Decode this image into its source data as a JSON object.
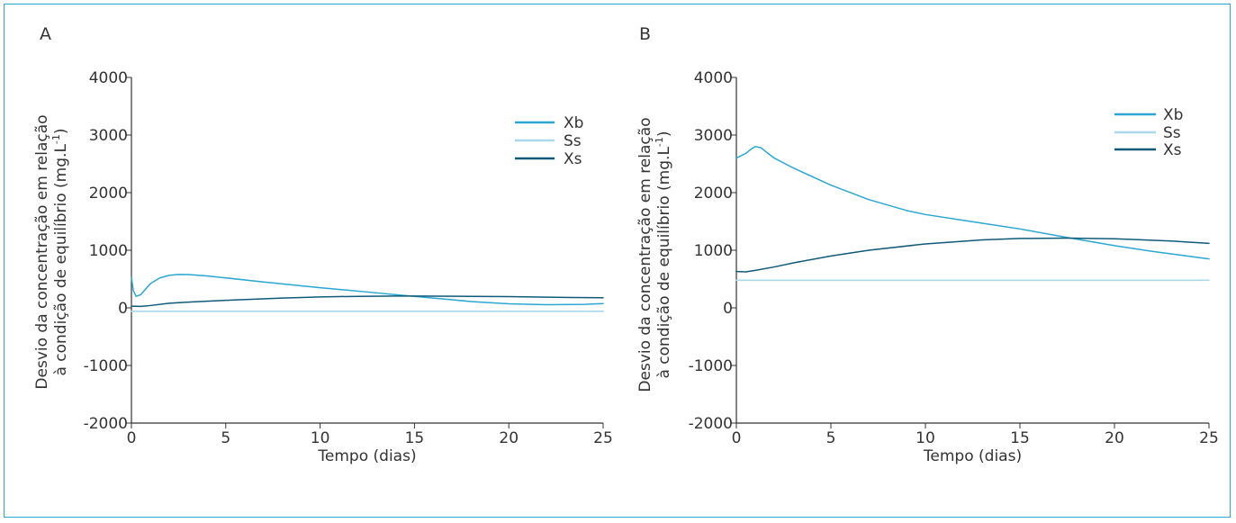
{
  "colors": {
    "Xb": "#2aa7d2",
    "Ss": "#a8d8ea",
    "Xs": "#0f5a78",
    "frame": "#2aa7d2",
    "axis": "#333333"
  },
  "chart_data": [
    {
      "type": "line",
      "panel_label": "A",
      "xlabel": "Tempo (dias)",
      "ylabel_line1": "Desvio da concentração em relação",
      "ylabel_line2": "à condição de equilíbrio (mg.L",
      "ylabel_sup": "-1",
      "ylabel_end": ")",
      "xlim": [
        0,
        25
      ],
      "ylim": [
        -2000,
        4000
      ],
      "xticks": [
        0,
        5,
        10,
        15,
        20,
        25
      ],
      "xtick_labels": [
        "0",
        "5",
        "10",
        "15",
        "20",
        "25"
      ],
      "yticks": [
        4000,
        3000,
        2000,
        1000,
        0,
        -1000,
        -2000
      ],
      "ytick_labels": [
        "4000",
        "3000",
        "2000",
        "1000",
        "0",
        "-1000",
        "-2000"
      ],
      "legend_position": "top-right",
      "series": [
        {
          "name": "Xb",
          "color_key": "Xb",
          "x": [
            0,
            0.1,
            0.25,
            0.5,
            1,
            1.5,
            2,
            2.5,
            3,
            4,
            5,
            7,
            10,
            12,
            15,
            18,
            20,
            22,
            24,
            25
          ],
          "y": [
            530,
            300,
            200,
            230,
            420,
            520,
            565,
            580,
            578,
            555,
            520,
            450,
            350,
            290,
            200,
            110,
            70,
            55,
            60,
            75
          ]
        },
        {
          "name": "Ss",
          "color_key": "Ss",
          "x": [
            0,
            25
          ],
          "y": [
            -60,
            -60
          ]
        },
        {
          "name": "Xs",
          "color_key": "Xs",
          "x": [
            0,
            0.5,
            1,
            2,
            3,
            5,
            8,
            10,
            12,
            14,
            15,
            18,
            20,
            22,
            25
          ],
          "y": [
            30,
            25,
            40,
            80,
            100,
            130,
            170,
            190,
            200,
            205,
            205,
            200,
            195,
            185,
            175
          ]
        }
      ]
    },
    {
      "type": "line",
      "panel_label": "B",
      "xlabel": "Tempo (dias)",
      "ylabel_line1": "Desvio da concentração em relação",
      "ylabel_line2": "à condição de equilíbrio (mg.L",
      "ylabel_sup": "-1",
      "ylabel_end": ")",
      "xlim": [
        0,
        25
      ],
      "ylim": [
        -2000,
        4000
      ],
      "xticks": [
        0,
        5,
        10,
        15,
        20,
        25
      ],
      "xtick_labels": [
        "0",
        "5",
        "10",
        "15",
        "20",
        "25"
      ],
      "yticks": [
        4000,
        3000,
        2000,
        1000,
        0,
        -1000,
        -2000
      ],
      "ytick_labels": [
        "4000",
        "3000",
        "2000",
        "1000",
        "0",
        "-1000",
        "-2000"
      ],
      "legend_position": "top-right",
      "series": [
        {
          "name": "Xb",
          "color_key": "Xb",
          "x": [
            0,
            0.5,
            0.8,
            1,
            1.3,
            1.6,
            2,
            3,
            5,
            7,
            9,
            10,
            12,
            15,
            17.5,
            20,
            22,
            25
          ],
          "y": [
            2600,
            2680,
            2760,
            2800,
            2780,
            2700,
            2600,
            2430,
            2130,
            1880,
            1690,
            1620,
            1520,
            1370,
            1220,
            1080,
            980,
            850
          ]
        },
        {
          "name": "Ss",
          "color_key": "Ss",
          "x": [
            0,
            25
          ],
          "y": [
            480,
            480
          ]
        },
        {
          "name": "Xs",
          "color_key": "Xs",
          "x": [
            0,
            0.5,
            1,
            2,
            3,
            5,
            7,
            10,
            13,
            15,
            17.5,
            20,
            23,
            25
          ],
          "y": [
            630,
            625,
            650,
            710,
            780,
            900,
            1000,
            1110,
            1180,
            1205,
            1210,
            1200,
            1160,
            1120
          ]
        }
      ]
    }
  ]
}
